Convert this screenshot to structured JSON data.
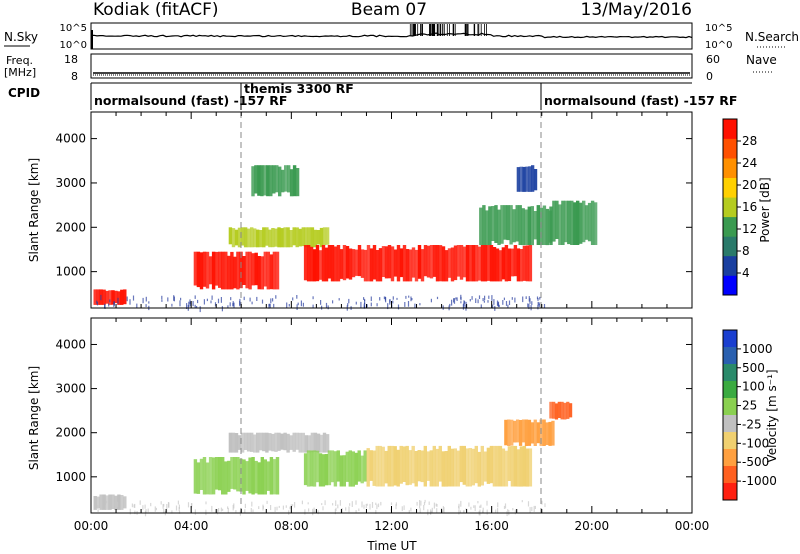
{
  "header": {
    "site": "Kodiak (fitACF)",
    "beam": "Beam 07",
    "date": "13/May/2016"
  },
  "noise_panel": {
    "left_label": "N.Sky",
    "right_label": "N.Search",
    "left_ticks": [
      "10^5",
      "10^0"
    ],
    "right_ticks": [
      "10^5",
      "10^0"
    ]
  },
  "freq_panel": {
    "left_label_line1": "Freq.",
    "left_label_line2": "[MHz]",
    "right_label": "Nave",
    "left_ticks": [
      "18",
      "8"
    ],
    "right_ticks": [
      "60",
      "0"
    ]
  },
  "cpid_panel": {
    "label": "CPID",
    "segments": [
      {
        "start_hour": 0,
        "end_hour": 6,
        "text": "normalsound (fast) -157 RF"
      },
      {
        "start_hour": 6,
        "end_hour": 18,
        "text": "themis 3300 RF"
      },
      {
        "start_hour": 18,
        "end_hour": 24,
        "text": "normalsound (fast) -157 RF"
      }
    ]
  },
  "power_panel": {
    "ylabel": "Slant Range [km]",
    "yticks": [
      "1000",
      "2000",
      "3000",
      "4000"
    ],
    "colorbar_label": "Power [dB]",
    "colorbar_ticks": [
      "4",
      "8",
      "12",
      "16",
      "20",
      "24",
      "28"
    ],
    "colorbar_colors": [
      "#0000ff",
      "#1a3fa0",
      "#2a7a6a",
      "#3a9a50",
      "#b5cc20",
      "#ffd000",
      "#ff9000",
      "#ff5000",
      "#ff1000"
    ]
  },
  "velocity_panel": {
    "ylabel": "Slant Range [km]",
    "yticks": [
      "1000",
      "2000",
      "3000",
      "4000"
    ],
    "colorbar_label": "Velocity [m s⁻¹]",
    "colorbar_ticks": [
      "1000",
      "500",
      "100",
      "25",
      "-25",
      "-100",
      "-500",
      "-1000"
    ],
    "colorbar_colors": [
      "#1a3fd0",
      "#2a60b0",
      "#2a8a6a",
      "#3aaa40",
      "#8ad050",
      "#c0c0c0",
      "#f0d070",
      "#ffa040",
      "#ff6020",
      "#ff2010"
    ]
  },
  "xaxis": {
    "label": "Time UT",
    "ticks": [
      "00:00",
      "04:00",
      "08:00",
      "12:00",
      "16:00",
      "20:00",
      "00:00"
    ]
  },
  "chart_data": {
    "type": "heatmap",
    "x_range_hours": [
      0,
      24
    ],
    "y_range_km": [
      180,
      4600
    ],
    "mode_change_hours": [
      6,
      18
    ],
    "power_echoes": [
      {
        "t_start": 0.1,
        "t_end": 1.4,
        "r_start": 250,
        "r_end": 600,
        "value_db": 26
      },
      {
        "t_start": 4.1,
        "t_end": 7.5,
        "r_start": 600,
        "r_end": 1450,
        "value_db": 30
      },
      {
        "t_start": 5.5,
        "t_end": 9.5,
        "r_start": 1550,
        "r_end": 2000,
        "value_db": 16
      },
      {
        "t_start": 6.4,
        "t_end": 8.3,
        "r_start": 2700,
        "r_end": 3400,
        "value_db": 12
      },
      {
        "t_start": 8.5,
        "t_end": 17.6,
        "r_start": 780,
        "r_end": 1600,
        "value_db": 28
      },
      {
        "t_start": 15.5,
        "t_end": 18.4,
        "r_start": 1600,
        "r_end": 2500,
        "value_db": 14
      },
      {
        "t_start": 17.0,
        "t_end": 17.8,
        "r_start": 2800,
        "r_end": 3400,
        "value_db": 8
      },
      {
        "t_start": 18.3,
        "t_end": 20.2,
        "r_start": 1600,
        "r_end": 2600,
        "value_db": 12
      }
    ],
    "velocity_echoes": [
      {
        "t_start": 0.1,
        "t_end": 1.4,
        "r_start": 250,
        "r_end": 600,
        "value_ms": 0
      },
      {
        "t_start": 4.1,
        "t_end": 7.5,
        "r_start": 600,
        "r_end": 1450,
        "value_ms": 120
      },
      {
        "t_start": 5.5,
        "t_end": 9.5,
        "r_start": 1550,
        "r_end": 2000,
        "value_ms": 0
      },
      {
        "t_start": 8.5,
        "t_end": 11.0,
        "r_start": 780,
        "r_end": 1600,
        "value_ms": 150
      },
      {
        "t_start": 11.0,
        "t_end": 17.6,
        "r_start": 780,
        "r_end": 1700,
        "value_ms": -300
      },
      {
        "t_start": 16.5,
        "t_end": 18.5,
        "r_start": 1700,
        "r_end": 2300,
        "value_ms": -400
      },
      {
        "t_start": 18.3,
        "t_end": 19.2,
        "r_start": 2300,
        "r_end": 2700,
        "value_ms": -600
      }
    ]
  }
}
